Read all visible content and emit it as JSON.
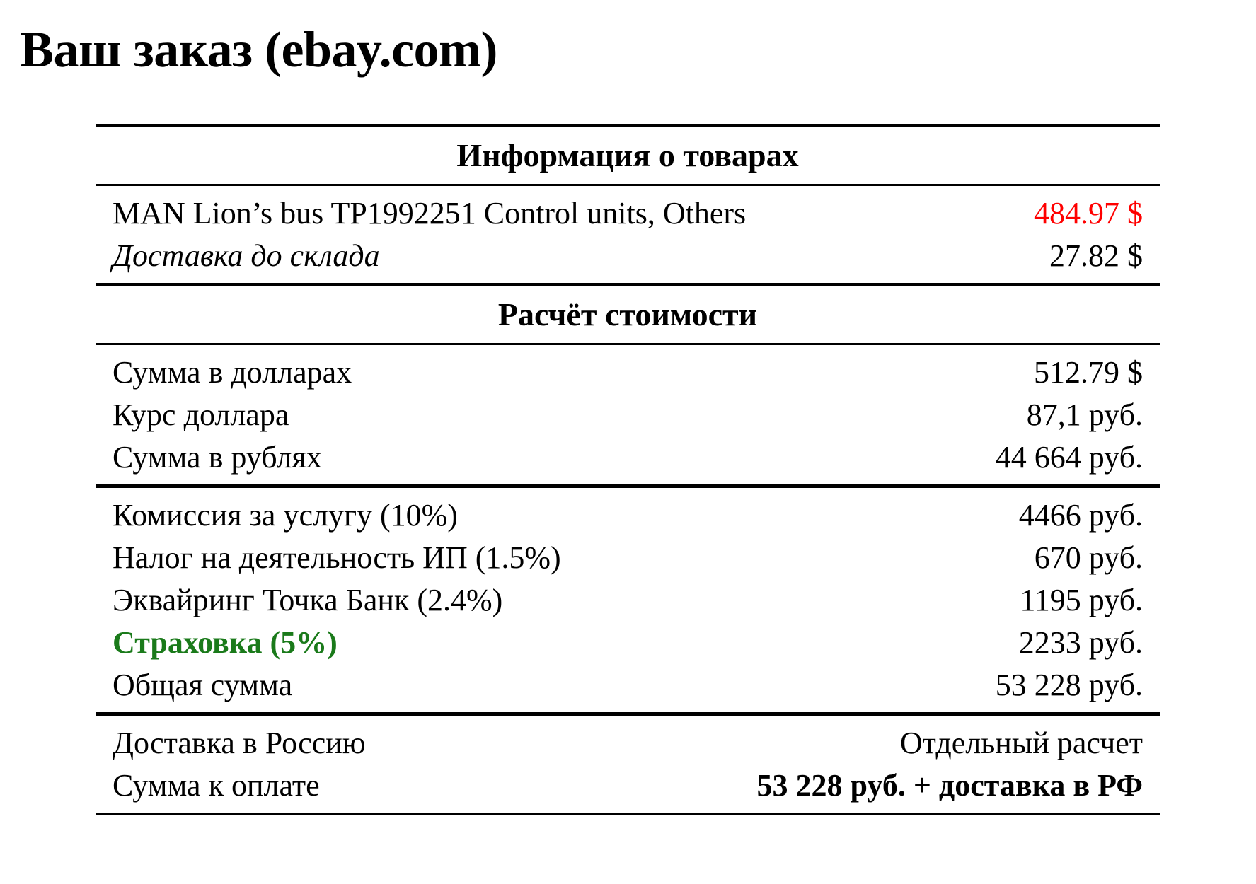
{
  "page": {
    "title": "Ваш заказ (ebay.com)"
  },
  "colors": {
    "background": "#ffffff",
    "text": "#000000",
    "price_red": "#ff0000",
    "insurance_green": "#1a7a1a"
  },
  "table": {
    "sections": [
      {
        "header": "Информация о товарах",
        "rows": [
          {
            "label": "MAN Lion’s bus TP1992251 Control units, Others",
            "value": "484.97 $"
          },
          {
            "label": "Доставка до склада",
            "value": "27.82 $"
          }
        ]
      },
      {
        "header": "Расчёт стоимости",
        "groups": [
          {
            "rows": [
              {
                "label": "Сумма в долларах",
                "value": "512.79 $"
              },
              {
                "label": "Курс доллара",
                "value": "87,1 руб."
              },
              {
                "label": "Сумма в рублях",
                "value": "44 664 руб."
              }
            ]
          },
          {
            "rows": [
              {
                "label": "Комиссия за услугу (10%)",
                "value": "4466 руб."
              },
              {
                "label": "Налог на деятельность ИП (1.5%)",
                "value": "670 руб."
              },
              {
                "label": "Эквайринг Точка Банк (2.4%)",
                "value": "1195 руб."
              },
              {
                "label": "Страховка (5%)",
                "value": "2233 руб."
              },
              {
                "label": "Общая сумма",
                "value": "53 228 руб."
              }
            ]
          },
          {
            "rows": [
              {
                "label": "Доставка в Россию",
                "value": "Отдельный расчет"
              },
              {
                "label": "Сумма к оплате",
                "value": "53 228 руб. + доставка в РФ"
              }
            ]
          }
        ]
      }
    ]
  }
}
